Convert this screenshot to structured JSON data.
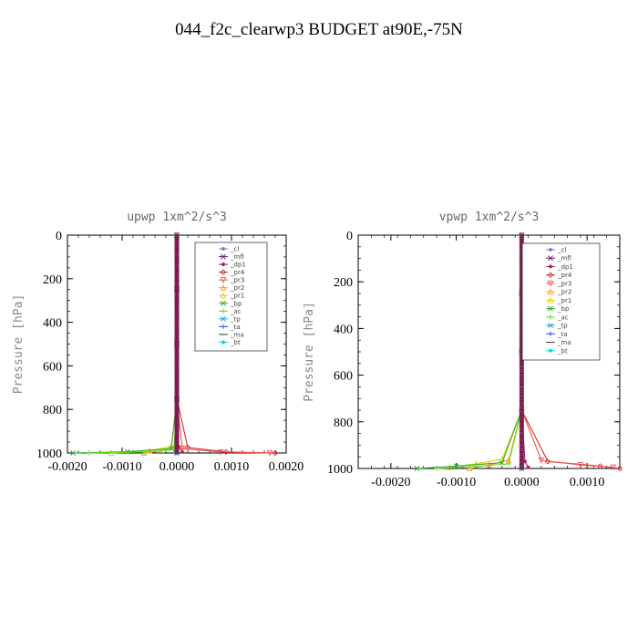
{
  "title": "044_f2c_clearwp3  BUDGET at90E,-75N",
  "chart_data": [
    {
      "type": "line",
      "title": "upwp   1xm^2/s^3",
      "ylabel": "Pressure  [hPa]",
      "xlim": [
        -0.002,
        0.002
      ],
      "ylim": [
        1000,
        0
      ],
      "xticks": [
        -0.002,
        -0.001,
        0.0,
        0.001,
        0.002
      ],
      "xtick_labels": [
        "-0.0020",
        "-0.0010",
        "0.0000",
        "0.0010",
        "0.0020"
      ],
      "yticks": [
        0,
        200,
        400,
        600,
        800,
        1000
      ],
      "ytick_labels": [
        "0",
        "200",
        "400",
        "600",
        "800",
        "1000"
      ],
      "legend_position": "top-right",
      "series": [
        {
          "name": "_cl",
          "color": "#9966cc",
          "x": [
            0.0,
            0.0,
            0.0,
            0.0,
            0.0
          ],
          "y": [
            0,
            250,
            500,
            750,
            1000
          ]
        },
        {
          "name": "_mfl",
          "color": "#7a1a7a",
          "x": [
            0.0,
            0.0,
            0.0,
            0.0,
            0.0
          ],
          "y": [
            0,
            250,
            500,
            750,
            1000
          ]
        },
        {
          "name": "_dp1",
          "color": "#a0205a",
          "x": [
            0.0,
            0.0,
            0.0,
            0.0,
            3e-05,
            0.0001
          ],
          "y": [
            0,
            250,
            500,
            750,
            970,
            995
          ]
        },
        {
          "name": "_pr4",
          "color": "#c83232",
          "x": [
            0.0,
            0.0,
            0.0,
            0.0,
            0.0002,
            0.0009,
            0.0018
          ],
          "y": [
            0,
            250,
            500,
            750,
            975,
            995,
            1000
          ]
        },
        {
          "name": "_pr3",
          "color": "#ff5050",
          "x": [
            0.0,
            0.0,
            0.0,
            0.0,
            0.0001,
            0.0008,
            0.0017
          ],
          "y": [
            0,
            250,
            500,
            750,
            980,
            996,
            1000
          ]
        },
        {
          "name": "_pr2",
          "color": "#ff9933",
          "x": [
            0.0,
            0.0,
            0.0,
            0.0,
            -5e-05,
            -0.0003,
            -0.0006
          ],
          "y": [
            0,
            250,
            500,
            750,
            975,
            992,
            1000
          ]
        },
        {
          "name": "_pr1",
          "color": "#e6d000",
          "x": [
            0.0,
            0.0,
            0.0,
            0.0,
            -0.0001,
            -0.0005,
            -0.0012
          ],
          "y": [
            0,
            250,
            500,
            750,
            970,
            990,
            1000
          ]
        },
        {
          "name": "_bp",
          "color": "#33aa33",
          "x": [
            0.0,
            0.0,
            0.0,
            0.0,
            -0.0001,
            -0.0009,
            -0.0019
          ],
          "y": [
            0,
            250,
            500,
            750,
            980,
            994,
            1000
          ]
        },
        {
          "name": "_ac",
          "color": "#66dd22",
          "x": [
            0.0,
            0.0,
            0.0,
            0.0,
            -5e-05,
            -0.0006,
            -0.0016
          ],
          "y": [
            0,
            250,
            500,
            750,
            985,
            996,
            1000
          ]
        },
        {
          "name": "_tp",
          "color": "#22aacc",
          "x": [
            0.0,
            0.0,
            0.0,
            0.0,
            0.0,
            0.0
          ],
          "y": [
            0,
            250,
            500,
            750,
            990,
            1000
          ]
        },
        {
          "name": "_ta",
          "color": "#3355ff",
          "x": [
            0.0,
            0.0,
            0.0,
            0.0,
            0.0,
            0.0
          ],
          "y": [
            0,
            250,
            500,
            750,
            990,
            1000
          ]
        },
        {
          "name": "_ma",
          "color": "#444444",
          "x": [
            0.0,
            0.0,
            0.0,
            0.0,
            0.0,
            0.0
          ],
          "y": [
            0,
            250,
            500,
            750,
            990,
            1000
          ]
        },
        {
          "name": "_bt",
          "color": "#00dddd",
          "x": [
            0.0,
            0.0,
            0.0,
            0.0,
            0.0,
            0.0
          ],
          "y": [
            0,
            250,
            500,
            750,
            990,
            1000
          ]
        }
      ]
    },
    {
      "type": "line",
      "title": "vpwp   1xm^2/s^3",
      "ylabel": "Pressure  [hPa]",
      "xlim": [
        -0.0025,
        0.0015
      ],
      "ylim": [
        1000,
        0
      ],
      "xticks": [
        -0.002,
        -0.001,
        0.0,
        0.001
      ],
      "xtick_labels": [
        "-0.0020",
        "-0.0010",
        "0.0000",
        "0.0010"
      ],
      "yticks": [
        0,
        200,
        400,
        600,
        800,
        1000
      ],
      "ytick_labels": [
        "0",
        "200",
        "400",
        "600",
        "800",
        "1000"
      ],
      "legend_position": "top-right",
      "series": [
        {
          "name": "_cl",
          "color": "#9966cc",
          "x": [
            0.0,
            0.0,
            0.0,
            0.0,
            0.0
          ],
          "y": [
            0,
            250,
            500,
            750,
            1000
          ]
        },
        {
          "name": "_mfl",
          "color": "#7a1a7a",
          "x": [
            0.0,
            0.0,
            0.0,
            0.0,
            0.0
          ],
          "y": [
            0,
            250,
            500,
            750,
            1000
          ]
        },
        {
          "name": "_dp1",
          "color": "#a0205a",
          "x": [
            0.0,
            0.0,
            0.0,
            0.0,
            5e-05,
            0.0001
          ],
          "y": [
            0,
            250,
            500,
            750,
            970,
            995
          ]
        },
        {
          "name": "_pr4",
          "color": "#c83232",
          "x": [
            0.0,
            0.0,
            0.0,
            0.0,
            0.0004,
            0.0012,
            0.0015
          ],
          "y": [
            0,
            250,
            500,
            750,
            970,
            990,
            1000
          ]
        },
        {
          "name": "_pr3",
          "color": "#ff5050",
          "x": [
            0.0,
            0.0,
            0.0,
            0.0,
            0.0003,
            0.0009,
            0.0014
          ],
          "y": [
            0,
            250,
            500,
            750,
            965,
            985,
            995
          ]
        },
        {
          "name": "_pr2",
          "color": "#ff9933",
          "x": [
            0.0,
            0.0,
            0.0,
            0.0,
            -0.0002,
            -0.0005,
            -0.0008
          ],
          "y": [
            0,
            250,
            500,
            750,
            965,
            985,
            1000
          ]
        },
        {
          "name": "_pr1",
          "color": "#e6d000",
          "x": [
            0.0,
            0.0,
            0.0,
            0.0,
            -0.0003,
            -0.0007,
            -0.0011
          ],
          "y": [
            0,
            250,
            500,
            750,
            960,
            980,
            995
          ]
        },
        {
          "name": "_bp",
          "color": "#33aa33",
          "x": [
            0.0,
            0.0,
            0.0,
            0.0,
            -0.0003,
            -0.001,
            -0.0016
          ],
          "y": [
            0,
            250,
            500,
            750,
            975,
            990,
            1000
          ]
        },
        {
          "name": "_ac",
          "color": "#66dd22",
          "x": [
            0.0,
            0.0,
            0.0,
            0.0,
            -0.0002,
            -0.0008,
            -0.0013
          ],
          "y": [
            0,
            250,
            500,
            750,
            980,
            992,
            1000
          ]
        },
        {
          "name": "_tp",
          "color": "#22aacc",
          "x": [
            0.0,
            0.0,
            0.0,
            0.0,
            0.0,
            0.0
          ],
          "y": [
            0,
            250,
            500,
            750,
            990,
            1000
          ]
        },
        {
          "name": "_ta",
          "color": "#3355ff",
          "x": [
            0.0,
            0.0,
            0.0,
            0.0,
            0.0,
            0.0
          ],
          "y": [
            0,
            250,
            500,
            750,
            990,
            1000
          ]
        },
        {
          "name": "_ma",
          "color": "#444444",
          "x": [
            0.0,
            0.0,
            0.0,
            0.0,
            0.0,
            0.0
          ],
          "y": [
            0,
            250,
            500,
            750,
            990,
            1000
          ]
        },
        {
          "name": "_bt",
          "color": "#00dddd",
          "x": [
            0.0,
            0.0,
            0.0,
            0.0,
            0.0,
            0.0
          ],
          "y": [
            0,
            250,
            500,
            750,
            990,
            1000
          ]
        }
      ]
    }
  ]
}
